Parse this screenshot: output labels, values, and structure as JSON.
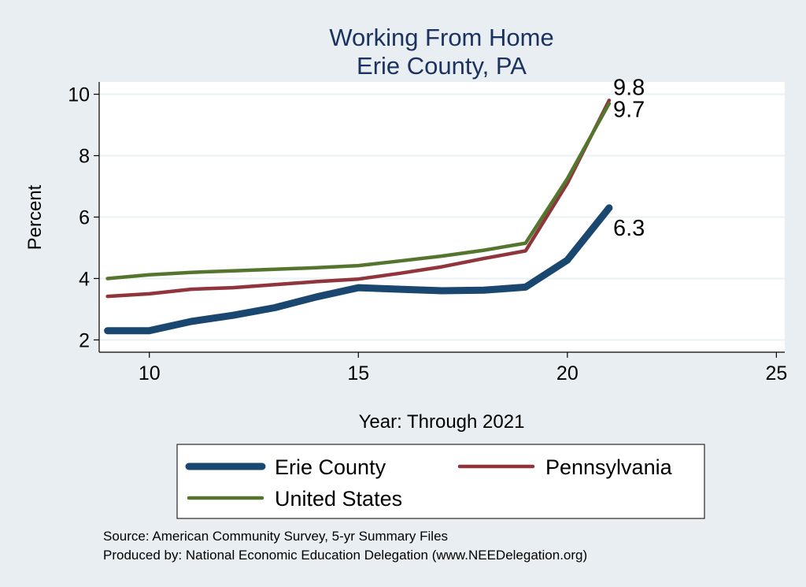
{
  "chart_data": {
    "type": "line",
    "title": "Working From Home",
    "subtitle": "Erie County, PA",
    "xlabel": "Year: Through 2021",
    "ylabel": "Percent",
    "xlim": [
      8.8,
      25.2
    ],
    "ylim": [
      1.6,
      10.4
    ],
    "xticks": [
      10,
      15,
      20,
      25
    ],
    "yticks": [
      2,
      4,
      6,
      8,
      10
    ],
    "grid": true,
    "legend_position": "bottom",
    "series": [
      {
        "name": "Erie County",
        "color": "#1a476f",
        "x": [
          9,
          10,
          11,
          12,
          13,
          14,
          15,
          16,
          17,
          18,
          19,
          20,
          21
        ],
        "y": [
          2.3,
          2.3,
          2.6,
          2.8,
          3.05,
          3.4,
          3.7,
          3.65,
          3.6,
          3.62,
          3.72,
          4.6,
          6.3
        ],
        "end_label": "6.3"
      },
      {
        "name": "Pennsylvania",
        "color": "#90353b",
        "x": [
          9,
          10,
          11,
          12,
          13,
          14,
          15,
          16,
          17,
          18,
          19,
          20,
          21
        ],
        "y": [
          3.42,
          3.5,
          3.65,
          3.7,
          3.8,
          3.9,
          3.98,
          4.17,
          4.38,
          4.65,
          4.9,
          7.1,
          9.8
        ],
        "end_label": "9.8"
      },
      {
        "name": "United States",
        "color": "#55752f",
        "x": [
          9,
          10,
          11,
          12,
          13,
          14,
          15,
          16,
          17,
          18,
          19,
          20,
          21
        ],
        "y": [
          4.0,
          4.12,
          4.2,
          4.25,
          4.3,
          4.35,
          4.42,
          4.57,
          4.73,
          4.92,
          5.15,
          7.25,
          9.7
        ],
        "end_label": "9.7"
      }
    ]
  },
  "footer": {
    "source": "Source: American Community Survey, 5-yr Summary Files",
    "produced": "Produced by: National Economic Education Delegation (www.NEEDelegation.org)"
  }
}
